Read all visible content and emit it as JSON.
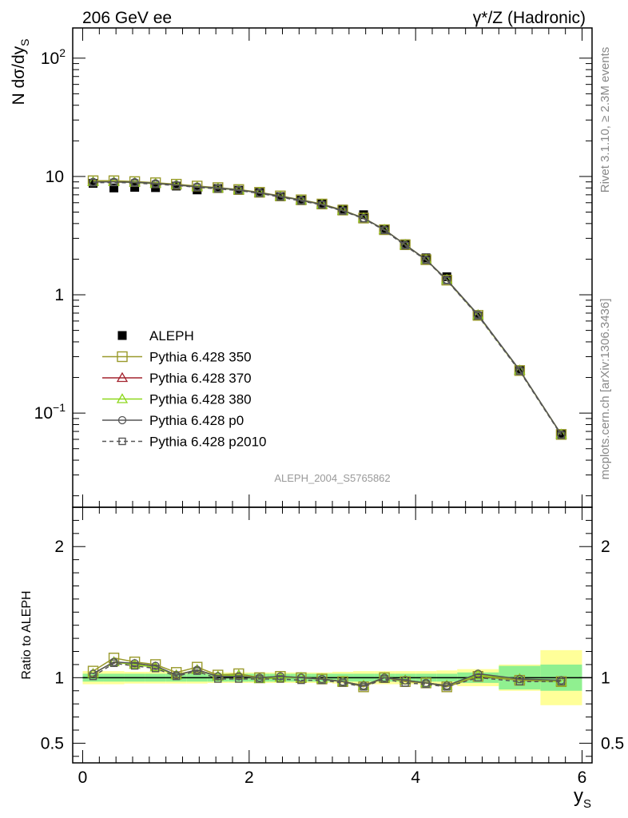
{
  "header": {
    "left": "206 GeV ee",
    "right": "γ*/Z (Hadronic)"
  },
  "side": {
    "rivet": "Rivet 3.1.10, ≥ 2.3M events",
    "mcplots": "mcplots.cern.ch [arXiv:1306.3436]"
  },
  "analysis_id": "ALEPH_2004_S5765862",
  "chart_data": [
    {
      "type": "scatter",
      "panel": "main",
      "title": "206 GeV ee",
      "ylabel": "N dσ/dy",
      "ylabel_sub": "S",
      "yscale": "log",
      "ylim": [
        0.016,
        180
      ],
      "xlim": [
        -0.12,
        6.12
      ],
      "y_ticks": [
        {
          "value": 100,
          "label": "10",
          "sup": "2"
        },
        {
          "value": 10,
          "label": "10",
          "sup": ""
        },
        {
          "value": 1,
          "label": "1",
          "sup": ""
        },
        {
          "value": 0.1,
          "label": "10",
          "sup": "−1"
        }
      ],
      "legend_position": "left",
      "x": [
        0.125,
        0.375,
        0.625,
        0.875,
        1.125,
        1.375,
        1.625,
        1.875,
        2.125,
        2.375,
        2.625,
        2.875,
        3.125,
        3.375,
        3.625,
        3.875,
        4.125,
        4.375,
        4.75,
        5.25,
        5.75
      ],
      "series": [
        {
          "name": "ALEPH",
          "style": "data",
          "color": "#000000",
          "values": [
            8.75,
            8.0,
            8.1,
            8.05,
            8.3,
            7.7,
            7.9,
            7.65,
            7.3,
            6.75,
            6.3,
            5.85,
            5.3,
            4.75,
            3.55,
            2.7,
            2.05,
            1.42,
            0.66,
            0.232,
            0.067
          ]
        },
        {
          "name": "Pythia 6.428 350",
          "style": "square",
          "color": "#9a9a2b",
          "values": [
            9.2,
            9.2,
            9.05,
            8.85,
            8.6,
            8.3,
            8.05,
            7.75,
            7.35,
            6.85,
            6.35,
            5.85,
            5.2,
            4.45,
            3.55,
            2.65,
            1.98,
            1.33,
            0.67,
            0.229,
            0.066
          ]
        },
        {
          "name": "Pythia 6.428 370",
          "style": "triangle",
          "color": "#a3232e",
          "values": [
            9.0,
            9.0,
            8.9,
            8.7,
            8.5,
            8.15,
            7.95,
            7.7,
            7.3,
            6.8,
            6.3,
            5.8,
            5.15,
            4.45,
            3.55,
            2.65,
            1.98,
            1.34,
            0.675,
            0.23,
            0.066
          ]
        },
        {
          "name": "Pythia 6.428 380",
          "style": "triangle",
          "color": "#8ed81c",
          "values": [
            9.0,
            9.0,
            8.9,
            8.7,
            8.5,
            8.15,
            7.95,
            7.7,
            7.3,
            6.8,
            6.3,
            5.8,
            5.15,
            4.45,
            3.55,
            2.65,
            1.98,
            1.34,
            0.675,
            0.23,
            0.066
          ]
        },
        {
          "name": "Pythia 6.428 p0",
          "style": "circle",
          "color": "#555555",
          "values": [
            9.0,
            9.0,
            8.95,
            8.75,
            8.5,
            8.2,
            8.0,
            7.7,
            7.3,
            6.8,
            6.3,
            5.8,
            5.15,
            4.45,
            3.55,
            2.65,
            1.98,
            1.34,
            0.68,
            0.231,
            0.066
          ]
        },
        {
          "name": "Pythia 6.428 p2010",
          "style": "square-dashed",
          "color": "#555555",
          "values": [
            8.85,
            8.9,
            8.8,
            8.6,
            8.4,
            8.1,
            7.85,
            7.6,
            7.2,
            6.7,
            6.2,
            5.75,
            5.1,
            4.4,
            3.5,
            2.6,
            1.96,
            1.32,
            0.665,
            0.226,
            0.065
          ]
        }
      ]
    },
    {
      "type": "line",
      "panel": "ratio",
      "ylabel": "Ratio to ALEPH",
      "xlabel": "y",
      "xlabel_sub": "S",
      "ylim": [
        0.35,
        2.3
      ],
      "xlim": [
        -0.12,
        6.12
      ],
      "x_ticks": [
        {
          "value": 0,
          "label": "0"
        },
        {
          "value": 2,
          "label": "2"
        },
        {
          "value": 4,
          "label": "4"
        },
        {
          "value": 6,
          "label": "6"
        }
      ],
      "y_ticks": [
        {
          "value": 0.5,
          "label": "0.5"
        },
        {
          "value": 1,
          "label": "1"
        },
        {
          "value": 2,
          "label": "2"
        }
      ],
      "x": [
        0.125,
        0.375,
        0.625,
        0.875,
        1.125,
        1.375,
        1.625,
        1.875,
        2.125,
        2.375,
        2.625,
        2.875,
        3.125,
        3.375,
        3.625,
        3.875,
        4.125,
        4.375,
        4.75,
        5.25,
        5.75
      ],
      "bin_edges": [
        0,
        0.25,
        0.5,
        0.75,
        1.0,
        1.25,
        1.5,
        1.75,
        2.0,
        2.25,
        2.5,
        2.75,
        3.0,
        3.25,
        3.5,
        3.75,
        4.0,
        4.25,
        4.5,
        5.0,
        5.5,
        6.0
      ],
      "band_stat": [
        0.03,
        0.03,
        0.03,
        0.03,
        0.03,
        0.03,
        0.03,
        0.03,
        0.03,
        0.03,
        0.03,
        0.03,
        0.03,
        0.03,
        0.03,
        0.03,
        0.03,
        0.03,
        0.04,
        0.09,
        0.1
      ],
      "band_total": [
        0.05,
        0.05,
        0.045,
        0.045,
        0.045,
        0.045,
        0.04,
        0.04,
        0.04,
        0.04,
        0.04,
        0.04,
        0.045,
        0.05,
        0.05,
        0.05,
        0.05,
        0.055,
        0.065,
        0.1,
        0.21
      ],
      "series": [
        {
          "name": "Pythia 6.428 350",
          "style": "square",
          "color": "#9a9a2b",
          "values": [
            1.05,
            1.15,
            1.12,
            1.1,
            1.04,
            1.08,
            1.02,
            1.03,
            1.0,
            1.01,
            1.0,
            0.99,
            0.97,
            0.93,
            1.0,
            0.97,
            0.96,
            0.93,
            1.01,
            0.98,
            0.97
          ]
        },
        {
          "name": "Pythia 6.428 370",
          "style": "triangle",
          "color": "#a3232e",
          "values": [
            1.03,
            1.12,
            1.1,
            1.08,
            1.02,
            1.06,
            1.01,
            1.02,
            0.99,
            1.0,
            1.0,
            0.99,
            0.97,
            0.94,
            1.0,
            0.98,
            0.96,
            0.94,
            1.02,
            0.99,
            0.97
          ]
        },
        {
          "name": "Pythia 6.428 380",
          "style": "triangle",
          "color": "#8ed81c",
          "values": [
            1.03,
            1.12,
            1.1,
            1.08,
            1.02,
            1.06,
            1.01,
            1.02,
            0.99,
            1.0,
            1.0,
            0.99,
            0.97,
            0.94,
            1.0,
            0.98,
            0.96,
            0.94,
            1.02,
            0.99,
            0.97
          ]
        },
        {
          "name": "Pythia 6.428 p0",
          "style": "circle",
          "color": "#555555",
          "values": [
            1.03,
            1.12,
            1.11,
            1.09,
            1.02,
            1.06,
            1.01,
            1.01,
            1.0,
            1.01,
            1.0,
            0.99,
            0.97,
            0.94,
            1.0,
            0.98,
            0.96,
            0.94,
            1.03,
            0.99,
            0.98
          ]
        },
        {
          "name": "Pythia 6.428 p2010",
          "style": "square-dashed",
          "color": "#555555",
          "values": [
            1.01,
            1.11,
            1.09,
            1.07,
            1.01,
            1.05,
            0.99,
            0.99,
            0.99,
            0.99,
            0.98,
            0.98,
            0.96,
            0.93,
            0.99,
            0.96,
            0.95,
            0.93,
            1.0,
            0.97,
            0.97
          ]
        }
      ]
    }
  ]
}
